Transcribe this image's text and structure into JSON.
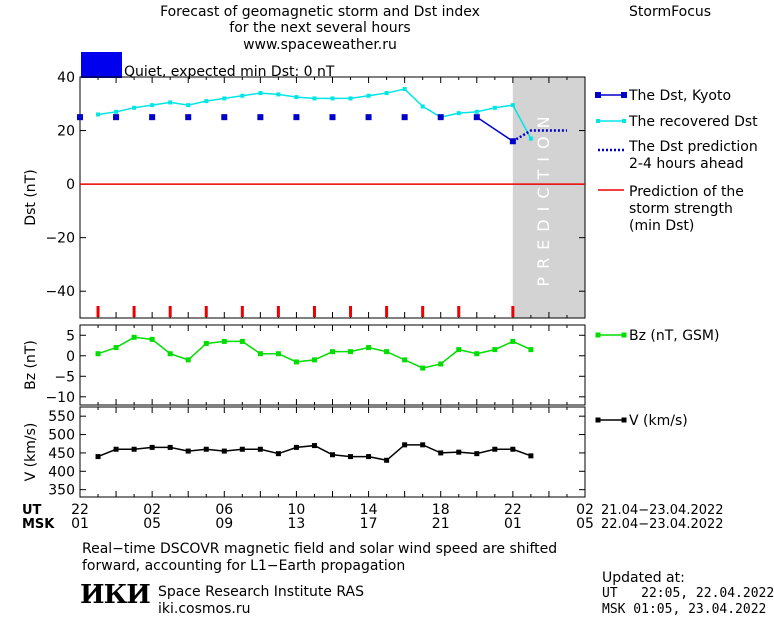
{
  "header": {
    "title_lines": [
      "Forecast of geomagnetic storm and Dst index",
      "for the next several hours",
      "www.spaceweather.ru"
    ],
    "brand": "StormFocus"
  },
  "status": {
    "label": "Quiet, expected min Dst: 0 nT",
    "color": "#0000ee"
  },
  "colors": {
    "dst": "#0000cc",
    "recovered": "#00e5e5",
    "prediction": "#0000cc",
    "storm": "#ee0000",
    "bz": "#00dd00",
    "v": "#000000",
    "prediction_zone": "#d3d3d3"
  },
  "chart_data": [
    {
      "type": "line",
      "ylabel": "Dst (nT)",
      "ylim": [
        -50,
        40
      ],
      "yticks": [
        40,
        20,
        0,
        -20,
        -40
      ],
      "xlim": [
        0,
        28
      ],
      "zone_label": "PREDICTION",
      "zone_start": 24,
      "series": [
        {
          "name": "The Dst, Kyoto",
          "style": "squares",
          "x": [
            0,
            2,
            4,
            6,
            8,
            10,
            12,
            14,
            16,
            18,
            20,
            22,
            24
          ],
          "y": [
            25,
            25,
            25,
            25,
            25,
            25,
            25,
            25,
            25,
            25,
            25,
            25,
            16
          ]
        },
        {
          "name": "The recovered Dst",
          "style": "line",
          "x": [
            1,
            2,
            3,
            4,
            5,
            6,
            7,
            8,
            9,
            10,
            11,
            12,
            13,
            14,
            15,
            16,
            17,
            18,
            19,
            20,
            21,
            22,
            23,
            24,
            25
          ],
          "y": [
            26,
            27,
            28.5,
            29.5,
            30.5,
            29.5,
            31,
            32,
            33,
            34,
            33.5,
            32.5,
            32,
            32,
            32,
            33,
            34,
            35.5,
            29,
            25,
            26.5,
            27,
            28.5,
            29.5,
            17
          ]
        },
        {
          "name": "The Dst prediction\n2-4 hours ahead",
          "style": "dotted",
          "x": [
            24,
            25,
            27
          ],
          "y": [
            16,
            20,
            20
          ]
        },
        {
          "name": "Prediction of the\nstorm strength\n(min Dst)",
          "style": "hline",
          "y": 0
        }
      ],
      "markers_x": [
        1,
        3,
        5,
        7,
        9,
        11,
        13,
        15,
        17,
        19,
        21,
        24
      ]
    },
    {
      "type": "line",
      "ylabel": "Bz (nT)",
      "ylim": [
        -12,
        7.5
      ],
      "yticks": [
        5,
        0,
        -5,
        -10
      ],
      "series": [
        {
          "name": "Bz (nT, GSM)",
          "x": [
            1,
            2,
            3,
            4,
            5,
            6,
            7,
            8,
            9,
            10,
            11,
            12,
            13,
            14,
            15,
            16,
            17,
            18,
            19,
            20,
            21,
            22,
            23,
            24,
            25
          ],
          "y": [
            0.5,
            2,
            4.5,
            4,
            0.5,
            -1,
            3,
            3.5,
            3.5,
            0.5,
            0.5,
            -1.5,
            -1,
            1,
            1,
            2,
            1,
            -1,
            -3,
            -2,
            1.5,
            0.5,
            1.5,
            3.5,
            1.5
          ]
        }
      ]
    },
    {
      "type": "line",
      "ylabel": "V (km/s)",
      "ylim": [
        330,
        575
      ],
      "yticks": [
        550,
        500,
        450,
        400,
        350
      ],
      "series": [
        {
          "name": "V (km/s)",
          "x": [
            1,
            2,
            3,
            4,
            5,
            6,
            7,
            8,
            9,
            10,
            11,
            12,
            13,
            14,
            15,
            16,
            17,
            18,
            19,
            20,
            21,
            22,
            23,
            24,
            25
          ],
          "y": [
            440,
            460,
            460,
            465,
            465,
            455,
            460,
            455,
            460,
            460,
            448,
            465,
            470,
            445,
            440,
            440,
            430,
            472,
            472,
            450,
            452,
            448,
            460,
            460,
            442
          ]
        }
      ]
    }
  ],
  "axes": {
    "ut_label": "UT",
    "msk_label": "MSK",
    "ut_ticks": [
      "22",
      "02",
      "06",
      "10",
      "14",
      "18",
      "22",
      "02"
    ],
    "msk_ticks": [
      "01",
      "05",
      "09",
      "13",
      "17",
      "21",
      "01",
      "05"
    ],
    "ut_dates": "21.04−23.04.2022",
    "msk_dates": "22.04−23.04.2022"
  },
  "footer": {
    "note_lines": [
      "Real−time DSCOVR magnetic field and solar wind speed are shifted",
      "forward, accounting for L1−Earth propagation"
    ],
    "logo": "ИКИ",
    "institute": "Space Research Institute RAS",
    "website": "iki.cosmos.ru",
    "updated_label": "Updated at:",
    "updated_ut": "UT   22:05, 22.04.2022",
    "updated_msk": "MSK 01:05, 23.04.2022"
  }
}
